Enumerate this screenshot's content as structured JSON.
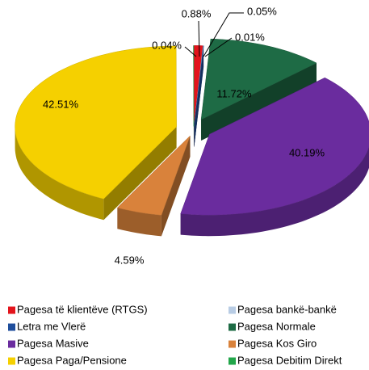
{
  "chart_data": {
    "type": "pie",
    "categories": [
      "Pagesa të klientëve (RTGS)",
      "Pagesa bankë-bankë",
      "Letra me Vlerë",
      "Pagesa Normale",
      "Pagesa Masive",
      "Pagesa Kos Giro",
      "Pagesa Paga/Pensione",
      "Pagesa Debitim Direkt"
    ],
    "values": [
      0.88,
      0.05,
      0.01,
      11.72,
      40.19,
      4.59,
      42.51,
      0.04
    ],
    "value_labels": [
      "0.88%",
      "0.05%",
      "0.01%",
      "11.72%",
      "40.19%",
      "4.59%",
      "42.51%",
      "0.04%"
    ],
    "colors": [
      "#e3141c",
      "#b8cce4",
      "#1f4e9c",
      "#1e6b45",
      "#6a2c9e",
      "#d9823b",
      "#f5d000",
      "#22a64a"
    ]
  }
}
